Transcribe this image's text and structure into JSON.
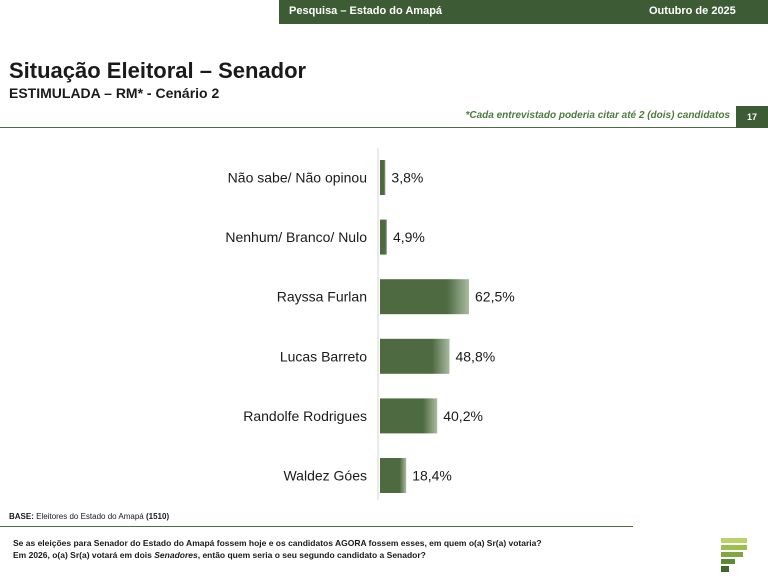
{
  "header": {
    "left_text": "Pesquisa – Estado do Amapá",
    "right_text": "Outubro de 2025"
  },
  "title": "Situação Eleitoral – Senador",
  "subtitle": "ESTIMULADA – RM* - Cenário 2",
  "note": "*Cada entrevistado poderia citar até 2 (dois) candidatos",
  "page_number": "17",
  "colors": {
    "bar": "#4d6a41",
    "bar_light": "#a9bba0",
    "header": "#3d5c35",
    "accent_text": "#4d7a3e"
  },
  "chart_data": {
    "type": "bar",
    "orientation": "horizontal",
    "categories": [
      "Não sabe/ Não opinou",
      "Nenhum/ Branco/ Nulo",
      "Rayssa Furlan",
      "Lucas Barreto",
      "Randolfe Rodrigues",
      "Waldez Góes"
    ],
    "values": [
      3.8,
      4.9,
      62.5,
      48.8,
      40.2,
      18.4
    ],
    "value_labels": [
      "3,8%",
      "4,9%",
      "62,5%",
      "48,8%",
      "40,2%",
      "18,4%"
    ],
    "unit": "%",
    "xlim": [
      0,
      100
    ],
    "grid": false,
    "legend": "none"
  },
  "footer": {
    "base_label": "BASE:",
    "base_text": "Eleitores do Estado do Amapá",
    "base_count": "(1510)",
    "question_line1": "Se as eleições para Senador do Estado do Amapá fossem hoje e os candidatos AGORA fossem esses, em quem o(a) Sr(a) votaria?",
    "question_line2_a": "Em 2026, o(a) Sr(a) votará em dois ",
    "question_line2_b": "Senadores",
    "question_line2_c": ", então quem seria o seu segundo candidato a Senador?"
  }
}
